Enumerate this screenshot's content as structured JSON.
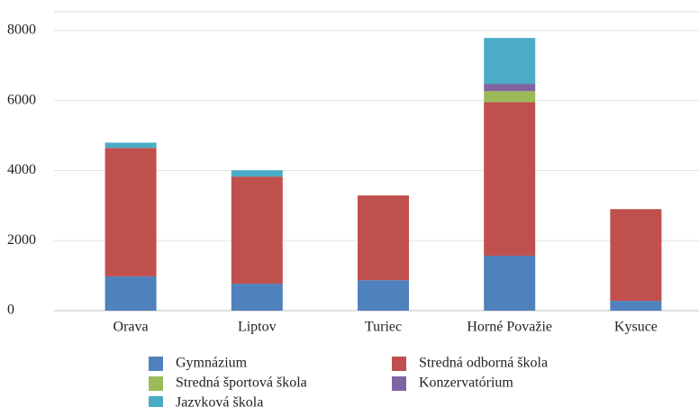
{
  "chart_data": {
    "type": "stacked_bar",
    "categories": [
      "Orava",
      "Liptov",
      "Turiec",
      "Horné Považie",
      "Kysuce"
    ],
    "series": [
      {
        "name": "Gymnázium",
        "color": "#4f81bd",
        "values": [
          980,
          770,
          870,
          1570,
          280
        ]
      },
      {
        "name": "Stredná odborná škola",
        "color": "#c0504d",
        "values": [
          3670,
          3060,
          2420,
          4390,
          2620
        ]
      },
      {
        "name": "Stredná športová škola",
        "color": "#9bbb59",
        "values": [
          0,
          0,
          0,
          310,
          0
        ]
      },
      {
        "name": "Konzervatórium",
        "color": "#8064a2",
        "values": [
          0,
          0,
          0,
          210,
          0
        ]
      },
      {
        "name": "Jazyková škola",
        "color": "#4bacc6",
        "values": [
          150,
          180,
          0,
          1310,
          0
        ]
      }
    ],
    "ylim": [
      0,
      8000
    ],
    "yticks": [
      0,
      2000,
      4000,
      6000,
      8000
    ],
    "grid": true,
    "legend": "bottom"
  }
}
